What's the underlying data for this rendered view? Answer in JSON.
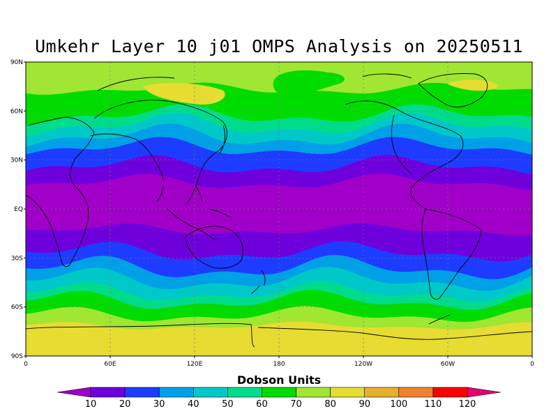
{
  "title": "Umkehr Layer 10 j01 OMPS Analysis on 20250511",
  "map": {
    "lat_labels": [
      "90N",
      "60N",
      "30N",
      "EQ",
      "30S",
      "60S",
      "90S"
    ],
    "lon_labels": [
      "0",
      "60E",
      "120E",
      "180",
      "120W",
      "60W",
      "0"
    ],
    "grid": true,
    "projection": "cylindrical"
  },
  "colorbar": {
    "title": "Dobson Units",
    "labels": [
      "10",
      "20",
      "30",
      "40",
      "50",
      "60",
      "70",
      "80",
      "90",
      "100",
      "110",
      "120"
    ],
    "colors": [
      "#a000c8",
      "#6e00dc",
      "#1e3cff",
      "#00a0e6",
      "#00c8c8",
      "#00dc8c",
      "#00dc00",
      "#a0e632",
      "#e6dc32",
      "#e6af2d",
      "#f0822d",
      "#fa0000",
      "#e6006e"
    ]
  }
}
